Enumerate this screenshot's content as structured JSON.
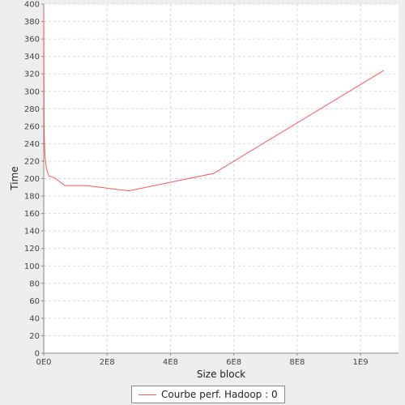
{
  "chart_data": {
    "type": "line",
    "title": "",
    "xlabel": "Size block",
    "ylabel": "Time",
    "xlim": [
      0,
      1120000000
    ],
    "ylim": [
      0,
      400
    ],
    "x_ticks": [
      {
        "value": 0,
        "label": "0E0"
      },
      {
        "value": 200000000,
        "label": "2E8"
      },
      {
        "value": 400000000,
        "label": "4E8"
      },
      {
        "value": 600000000,
        "label": "6E8"
      },
      {
        "value": 800000000,
        "label": "8E8"
      },
      {
        "value": 1000000000,
        "label": "1E9"
      }
    ],
    "y_ticks": [
      0,
      20,
      40,
      60,
      80,
      100,
      120,
      140,
      160,
      180,
      200,
      220,
      240,
      260,
      280,
      300,
      320,
      340,
      360,
      380,
      400
    ],
    "grid": true,
    "legend_position": "bottom",
    "series": [
      {
        "name": "Courbe perf. Hadoop : 0",
        "color": "#ff5555",
        "x": [
          100000,
          500000,
          1000000,
          2000000,
          4000000,
          8000000,
          16000000,
          33554432,
          67108864,
          134217728,
          268435456,
          536870912,
          1073741824
        ],
        "y": [
          392,
          320,
          270,
          245,
          225,
          212,
          203,
          201,
          192,
          192,
          186,
          206,
          324
        ]
      }
    ]
  }
}
